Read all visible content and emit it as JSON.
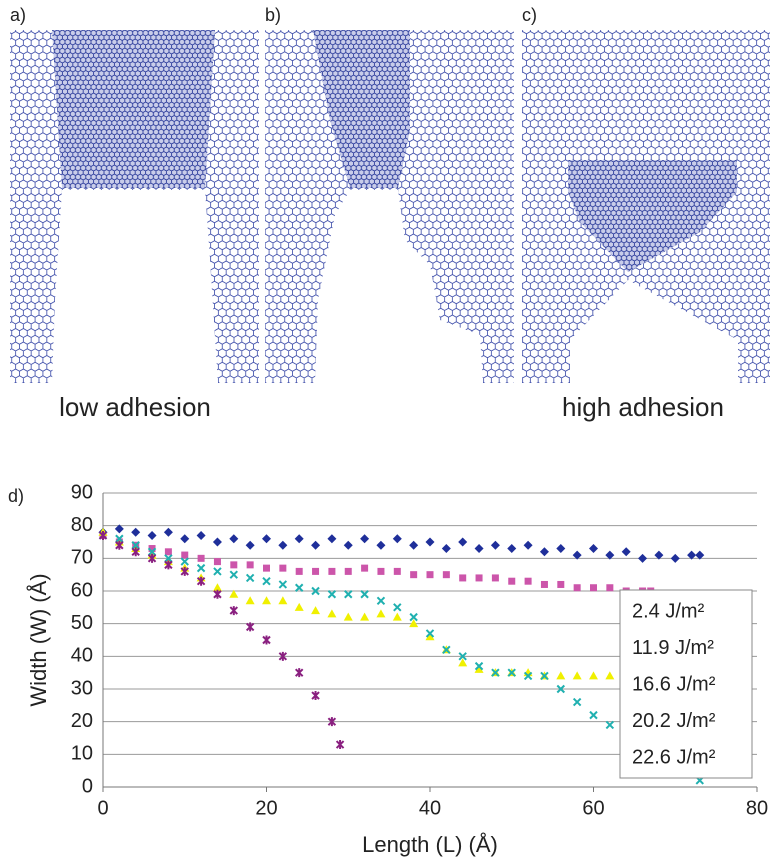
{
  "panels": {
    "labels": [
      "a)",
      "b)",
      "c)"
    ],
    "captions": [
      "low adhesion",
      "high adhesion"
    ]
  },
  "chart_data": {
    "type": "scatter",
    "panel_label": "d)",
    "x_label": "Length (L) (Å)",
    "y_label": "Width (W) (Å)",
    "xlim": [
      0,
      80
    ],
    "xticks": [
      0,
      20,
      40,
      60,
      80
    ],
    "ylim": [
      0,
      90
    ],
    "yticks": [
      0,
      10,
      20,
      30,
      40,
      50,
      60,
      70,
      80,
      90
    ],
    "grid": true,
    "legend": "lower right",
    "series": [
      {
        "name": "2.4 J/m²",
        "color": "#1f2f9a",
        "marker": "diamond",
        "x": [
          0,
          2,
          4,
          6,
          8,
          10,
          12,
          14,
          16,
          18,
          20,
          22,
          24,
          26,
          28,
          30,
          32,
          34,
          36,
          38,
          40,
          42,
          44,
          46,
          48,
          50,
          52,
          54,
          56,
          58,
          60,
          62,
          64,
          66,
          68,
          70,
          72,
          73
        ],
        "values": [
          78,
          79,
          78,
          77,
          78,
          76,
          77,
          75,
          76,
          74,
          76,
          74,
          76,
          74,
          76,
          74,
          76,
          74,
          76,
          74,
          75,
          73,
          75,
          73,
          74,
          73,
          74,
          72,
          73,
          71,
          73,
          71,
          72,
          70,
          71,
          70,
          71,
          71
        ]
      },
      {
        "name": "11.9 J/m²",
        "color": "#cc55aa",
        "marker": "square",
        "x": [
          0,
          2,
          4,
          6,
          8,
          10,
          12,
          14,
          16,
          18,
          20,
          22,
          24,
          26,
          28,
          30,
          32,
          34,
          36,
          38,
          40,
          42,
          44,
          46,
          48,
          50,
          52,
          54,
          56,
          58,
          60,
          62,
          64,
          66,
          67
        ],
        "values": [
          77,
          75,
          74,
          73,
          72,
          71,
          70,
          69,
          68,
          68,
          67,
          67,
          66,
          66,
          66,
          66,
          67,
          66,
          66,
          65,
          65,
          65,
          64,
          64,
          64,
          63,
          63,
          62,
          62,
          61,
          61,
          61,
          60,
          60,
          60
        ]
      },
      {
        "name": "16.6 J/m²",
        "color": "#f0f000",
        "marker": "triangle",
        "x": [
          0,
          2,
          4,
          6,
          8,
          10,
          12,
          14,
          16,
          18,
          20,
          22,
          24,
          26,
          28,
          30,
          32,
          34,
          36,
          38,
          40,
          42,
          44,
          46,
          48,
          50,
          52,
          54,
          56,
          58,
          60,
          62,
          64,
          66
        ],
        "values": [
          78,
          75,
          73,
          71,
          69,
          67,
          64,
          61,
          59,
          57,
          57,
          57,
          55,
          54,
          53,
          52,
          52,
          53,
          52,
          50,
          46,
          42,
          38,
          36,
          35,
          35,
          35,
          34,
          34,
          34,
          34,
          34,
          34,
          35
        ]
      },
      {
        "name": "20.2 J/m²",
        "color": "#20b0b0",
        "marker": "x",
        "x": [
          0,
          2,
          4,
          6,
          8,
          10,
          12,
          14,
          16,
          18,
          20,
          22,
          24,
          26,
          28,
          30,
          32,
          34,
          36,
          38,
          40,
          42,
          44,
          46,
          48,
          50,
          52,
          54,
          56,
          58,
          60,
          62,
          64,
          66,
          68,
          70,
          72,
          73
        ],
        "values": [
          77,
          76,
          74,
          72,
          70,
          69,
          67,
          66,
          65,
          64,
          63,
          62,
          61,
          60,
          59,
          59,
          59,
          57,
          55,
          52,
          47,
          42,
          40,
          37,
          35,
          35,
          34,
          34,
          30,
          26,
          22,
          19,
          16,
          12,
          9,
          6,
          4,
          2
        ]
      },
      {
        "name": "22.6 J/m²",
        "color": "#8a2080",
        "marker": "star",
        "x": [
          0,
          2,
          4,
          6,
          8,
          10,
          12,
          14,
          16,
          18,
          20,
          22,
          24,
          26,
          28,
          29
        ],
        "values": [
          77,
          74,
          72,
          70,
          68,
          66,
          63,
          59,
          54,
          49,
          45,
          40,
          35,
          28,
          20,
          13
        ]
      }
    ]
  }
}
